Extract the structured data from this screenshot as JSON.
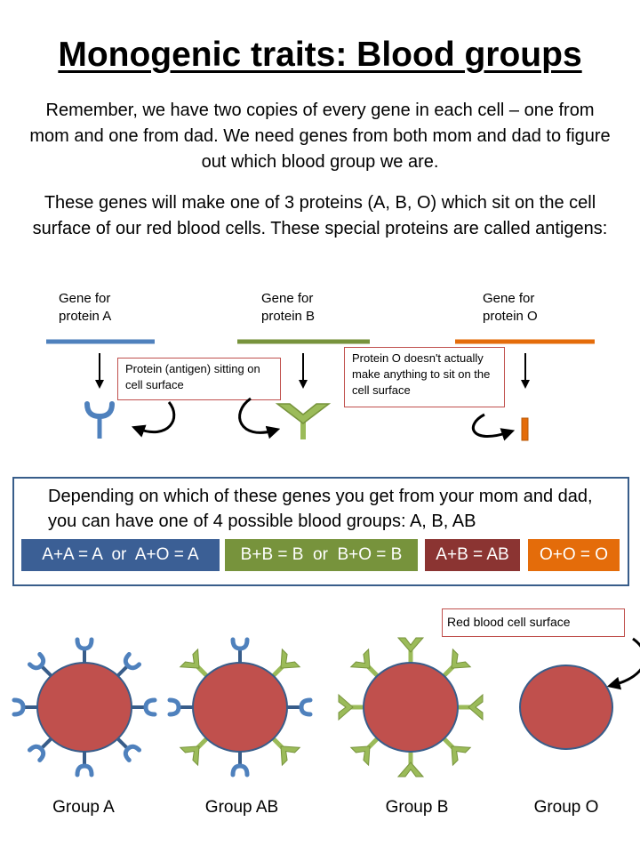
{
  "title": "Monogenic traits: Blood groups",
  "intro_paragraph": "Remember, we have two copies of every gene in each cell – one from mom and one from dad. We need genes from both mom and dad to figure out which blood group we are.",
  "protein_paragraph": "These genes will make one of 3 proteins (A, B, O) which sit on the cell surface of our red blood cells. These special proteins are called antigens:",
  "genes": [
    {
      "label_line1": "Gene for",
      "label_line2": "protein A",
      "color": "#4f81bd"
    },
    {
      "label_line1": "Gene for",
      "label_line2": "protein B",
      "color": "#77933c"
    },
    {
      "label_line1": "Gene for",
      "label_line2": "protein O",
      "color": "#e46c0a"
    }
  ],
  "notes": {
    "antigen_note": "Protein (antigen) sitting on cell surface",
    "protein_o_note": "Protein O doesn't actually make anything to sit on the cell surface",
    "rbc_surface_note": "Red blood cell surface"
  },
  "blood_groups_box": {
    "text": "Depending on which of these genes you get from your mom and dad, you can have one of 4 possible blood groups: A, B, AB",
    "combinations": [
      {
        "label": "A+A = A  or  A+O = A",
        "color": "#3b5f95"
      },
      {
        "label": "B+B = B  or  B+O = B",
        "color": "#77933c"
      },
      {
        "label": "A+B = AB",
        "color": "#8b3432"
      },
      {
        "label": "O+O = O",
        "color": "#e46c0a"
      }
    ]
  },
  "groups": [
    "Group A",
    "Group AB",
    "Group B",
    "Group O"
  ],
  "colors": {
    "cell_fill": "#c0504d",
    "cell_stroke": "#385d8a",
    "antigen_a": "#4f81bd",
    "antigen_b": "#9bbb59",
    "note_border": "#c0504d"
  }
}
